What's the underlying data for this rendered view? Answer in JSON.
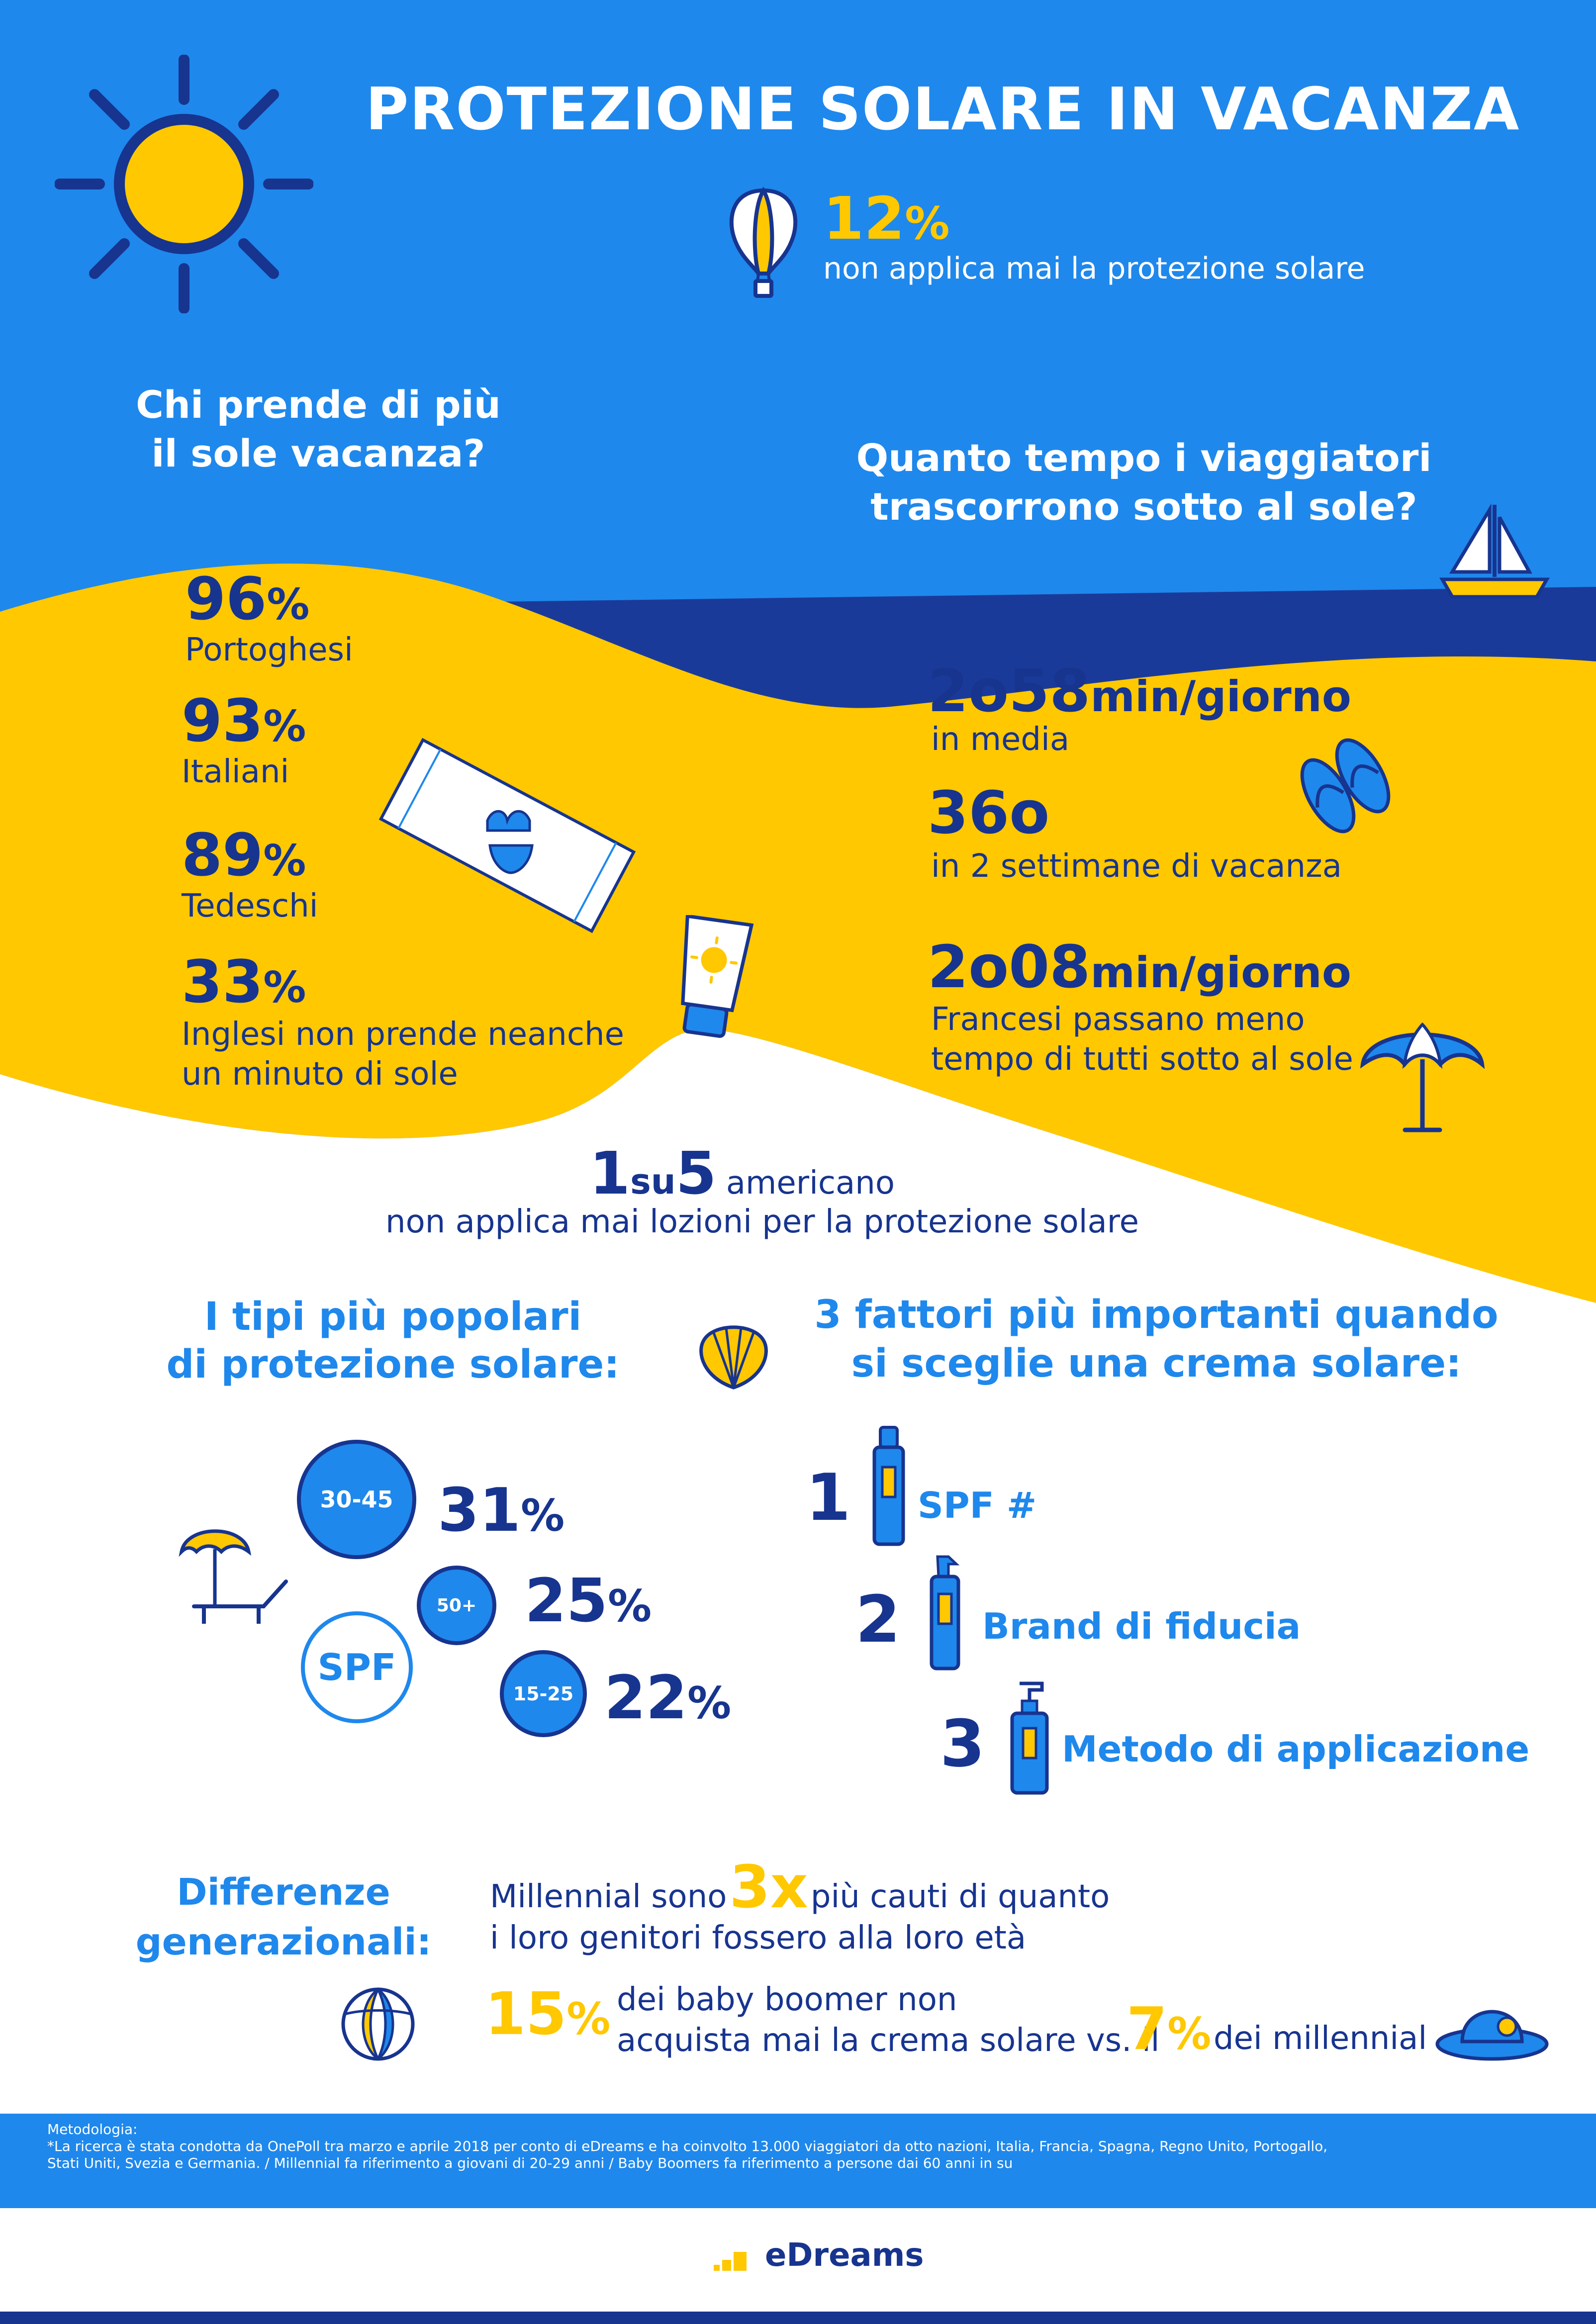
{
  "header": {
    "title": "PROTEZIONE SOLARE IN VACANZA",
    "stat_value": "12",
    "stat_unit": "%",
    "stat_caption": "non applica mai la protezione solare"
  },
  "who_tans": {
    "heading_line1": "Chi prende di più",
    "heading_line2": "il sole vacanza?",
    "items": [
      {
        "value": "96",
        "unit": "%",
        "label": "Portoghesi"
      },
      {
        "value": "93",
        "unit": "%",
        "label": "Italiani"
      },
      {
        "value": "89",
        "unit": "%",
        "label": "Tedeschi"
      },
      {
        "value": "33",
        "unit": "%",
        "label_line1": "Inglesi non prende neanche",
        "label_line2": "un minuto di sole"
      }
    ]
  },
  "time_in_sun": {
    "heading_line1": "Quanto tempo i viaggiatori",
    "heading_line2": "trascorrono sotto al sole?",
    "stat1_value": "2o58",
    "stat1_unit": "min/giorno",
    "stat1_caption": "in media",
    "stat2_value": "36o",
    "stat2_caption": "in 2 settimane di vacanza",
    "stat3_value": "2o08",
    "stat3_unit": "min/giorno",
    "stat3_caption_line1": "Francesi passano meno",
    "stat3_caption_line2": "tempo di tutti sotto al sole"
  },
  "americans": {
    "num1": "1",
    "su": "su",
    "num2": "5",
    "word": "americano",
    "caption": "non applica mai lozioni per la protezione solare"
  },
  "types": {
    "heading_line1": "I tipi più popolari",
    "heading_line2": "di protezione solare:",
    "spf_label": "SPF",
    "items": [
      {
        "range": "30-45",
        "value": "31",
        "unit": "%"
      },
      {
        "range": "50+",
        "value": "25",
        "unit": "%"
      },
      {
        "range": "15-25",
        "value": "22",
        "unit": "%"
      }
    ]
  },
  "factors": {
    "heading_line1": "3 fattori più importanti quando",
    "heading_line2": "si sceglie una crema solare:",
    "items": [
      {
        "rank": "1",
        "label": "SPF #"
      },
      {
        "rank": "2",
        "label": "Brand di fiducia"
      },
      {
        "rank": "3",
        "label": "Metodo di applicazione"
      }
    ]
  },
  "generations": {
    "heading_line1": "Differenze",
    "heading_line2": "generazionali:",
    "line1_pre": "Millennial sono",
    "line1_value": "3x",
    "line1_post": "più cauti di quanto",
    "line2": "i loro genitori fossero alla loro età",
    "boomer_value": "15",
    "boomer_unit": "%",
    "boomer_line1": "dei baby boomer non",
    "boomer_line2": "acquista mai la crema solare vs. il",
    "millennial_value": "7",
    "millennial_unit": "%",
    "millennial_post": "dei millennial"
  },
  "methodology": {
    "heading": "Metodologia:",
    "line1": "*La ricerca è stata condotta da OnePoll tra marzo e aprile 2018 per conto di eDreams e ha coinvolto 13.000 viaggiatori da otto nazioni, Italia, Francia, Spagna, Regno Unito, Portogallo,",
    "line2": "Stati Uniti, Svezia e Germania. / Millennial fa riferimento a giovani di 20-29 anni / Baby Boomers fa riferimento a persone dai 60 anni in su"
  },
  "footer": {
    "brand": "eDreams"
  },
  "colors": {
    "sky": "#1f88ec",
    "sand": "#ffc800",
    "navy": "#17348f",
    "sea": "#1a3a9a",
    "white": "#ffffff"
  }
}
